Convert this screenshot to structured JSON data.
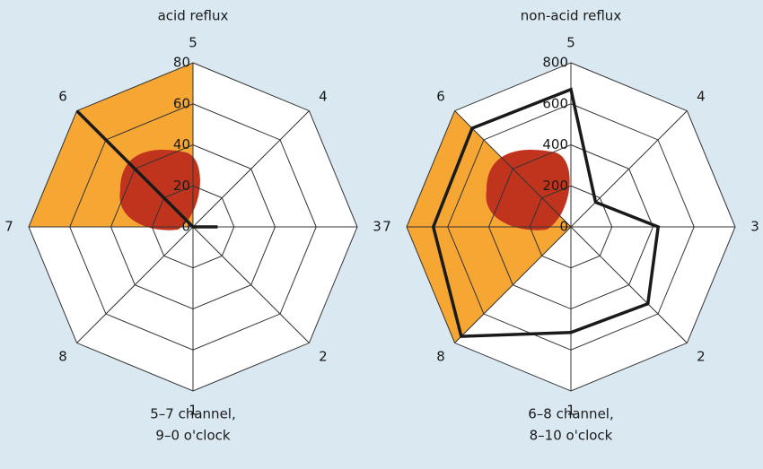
{
  "chart_data": [
    {
      "type": "radar",
      "title": "acid reflux",
      "caption": [
        "5–7 channel,",
        "9–0 o'clock"
      ],
      "categories": [
        "5",
        "4",
        "3",
        "2",
        "1",
        "8",
        "7",
        "6"
      ],
      "rlim": [
        0,
        80
      ],
      "rticks": [
        0,
        20,
        40,
        60,
        80
      ],
      "highlight": [
        "5",
        "6",
        "7"
      ],
      "highlight_color": "#f5a633",
      "series": [
        {
          "color": "#1a1a1a",
          "values": [
            0,
            0,
            12,
            0,
            0,
            0,
            0,
            80
          ]
        }
      ]
    },
    {
      "type": "radar",
      "title": "non-acid reflux",
      "caption": [
        "6–8 channel,",
        "8–10 o'clock"
      ],
      "categories": [
        "5",
        "4",
        "3",
        "2",
        "1",
        "8",
        "7",
        "6"
      ],
      "rlim": [
        0,
        800
      ],
      "rticks": [
        0,
        200,
        400,
        600,
        800
      ],
      "highlight": [
        "6",
        "7",
        "8"
      ],
      "highlight_color": "#f5a633",
      "series": [
        {
          "color": "#1a1a1a",
          "values": [
            670,
            170,
            425,
            530,
            515,
            755,
            670,
            680
          ]
        }
      ]
    }
  ]
}
